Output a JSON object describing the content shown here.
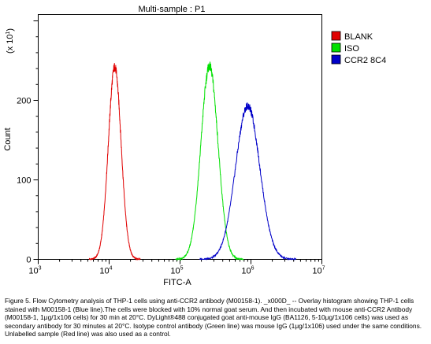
{
  "chart_data": {
    "type": "line",
    "title": "Multi-sample : P1",
    "xlabel": "FITC-A",
    "ylabel": "Count",
    "y_multiplier_label": "(x 10",
    "y_multiplier_exp": "1",
    "y_multiplier_close": ")",
    "x_scale": "log",
    "xlim": [
      1000,
      10000000
    ],
    "ylim": [
      0,
      300
    ],
    "x_ticks": [
      {
        "base": "10",
        "exp": "3"
      },
      {
        "base": "10",
        "exp": "4"
      },
      {
        "base": "10",
        "exp": "5"
      },
      {
        "base": "10",
        "exp": "6"
      },
      {
        "base": "10",
        "exp": "7"
      }
    ],
    "y_ticks": [
      0,
      100,
      200
    ],
    "grid": false,
    "legend_position": "right",
    "series": [
      {
        "name": "BLANK",
        "color": "#e00000",
        "peak_x": 12000,
        "peak_y": 242,
        "width_log": 0.09
      },
      {
        "name": "ISO",
        "color": "#00e000",
        "peak_x": 260000,
        "peak_y": 243,
        "width_log": 0.12
      },
      {
        "name": "CCR2 8C4",
        "color": "#0000c8",
        "peak_x": 900000,
        "peak_y": 193,
        "width_log": 0.17
      }
    ]
  },
  "caption": "Figure 5. Flow Cytometry analysis of THP-1 cells using anti-CCR2 antibody (M00158-1). _x000D_ -- Overlay histogram showing THP-1 cells stained with M00158-1 (Blue line).The cells were blocked with 10% normal goat serum. And then incubated with mouse anti-CCR2 Antibody (M00158-1, 1μg/1x106 cells) for 30 min at 20°C. DyLight®488 conjugated goat anti-mouse IgG (BA1126, 5-10μg/1x106 cells) was used as secondary antibody for 30 minutes at 20°C. Isotype control antibody (Green line) was mouse IgG (1μg/1x106) used under the same conditions. Unlabelled sample (Red line) was also used as a control."
}
